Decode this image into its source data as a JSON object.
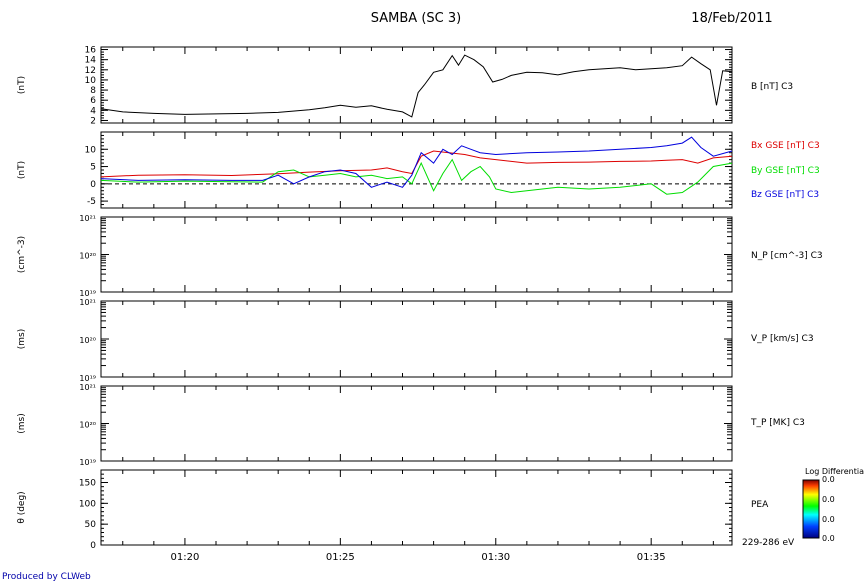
{
  "header": {
    "title": "SAMBA (SC 3)",
    "date": "18/Feb/2011"
  },
  "footer": {
    "text": "Produced by CLWeb"
  },
  "colors": {
    "frame": "#000000",
    "b_total": "#000000",
    "bx": "#dd0000",
    "by": "#00dd00",
    "bz": "#0000dd"
  },
  "chart_data": [
    {
      "type": "line",
      "panel": "B",
      "ylabel": "(nT)",
      "legend": [
        {
          "text": "B [nT] C3",
          "color": "#000000"
        }
      ],
      "xrange_min": [
        77.3,
        97.6
      ],
      "ylim": [
        1.5,
        16.5
      ],
      "yticks": [
        2,
        4,
        6,
        8,
        10,
        12,
        14,
        16
      ],
      "series": [
        {
          "color": "#000000",
          "x": [
            77.3,
            78.0,
            79.0,
            80.0,
            81.0,
            82.0,
            83.0,
            84.0,
            84.5,
            85.0,
            85.5,
            86.0,
            86.5,
            87.0,
            87.3,
            87.5,
            87.7,
            88.0,
            88.3,
            88.6,
            88.8,
            89.0,
            89.3,
            89.6,
            89.9,
            90.2,
            90.5,
            91.0,
            91.5,
            92.0,
            92.5,
            93.0,
            93.5,
            94.0,
            94.5,
            95.0,
            95.5,
            96.0,
            96.3,
            96.6,
            96.9,
            97.1,
            97.3,
            97.6
          ],
          "y": [
            4.3,
            3.7,
            3.4,
            3.2,
            3.3,
            3.4,
            3.6,
            4.1,
            4.5,
            5.0,
            4.6,
            4.9,
            4.2,
            3.7,
            2.7,
            7.5,
            9.0,
            11.5,
            12.0,
            14.8,
            12.9,
            14.9,
            14.0,
            12.6,
            9.6,
            10.1,
            10.9,
            11.5,
            11.4,
            11.0,
            11.6,
            12.0,
            12.2,
            12.4,
            12.0,
            12.2,
            12.4,
            12.8,
            14.5,
            13.2,
            12.0,
            5.0,
            11.8,
            11.6
          ]
        }
      ]
    },
    {
      "type": "line",
      "panel": "B_GSE",
      "ylabel": "(nT)",
      "legend": [
        {
          "text": "Bx GSE [nT] C3",
          "color": "#dd0000"
        },
        {
          "text": "By GSE [nT] C3",
          "color": "#00dd00"
        },
        {
          "text": "Bz GSE [nT] C3",
          "color": "#0000dd"
        }
      ],
      "xrange_min": [
        77.3,
        97.6
      ],
      "ylim": [
        -7,
        15
      ],
      "yticks": [
        -5,
        0,
        5,
        10
      ],
      "zero_line": "dashed",
      "series": [
        {
          "name": "Bx GSE [nT] C3",
          "color": "#dd0000",
          "x": [
            77.3,
            78.5,
            80.0,
            81.5,
            83.0,
            84.0,
            85.0,
            86.0,
            86.5,
            87.0,
            87.3,
            87.6,
            88.0,
            88.5,
            89.0,
            89.5,
            90.0,
            91.0,
            92.0,
            93.0,
            94.0,
            95.0,
            95.5,
            96.0,
            96.5,
            97.0,
            97.6
          ],
          "y": [
            2.0,
            2.5,
            2.6,
            2.4,
            2.9,
            3.4,
            3.8,
            4.0,
            4.6,
            3.5,
            3.0,
            8.0,
            9.5,
            9.0,
            8.5,
            7.5,
            7.0,
            6.0,
            6.2,
            6.3,
            6.5,
            6.6,
            6.8,
            7.0,
            6.0,
            7.5,
            8.0
          ]
        },
        {
          "name": "By GSE [nT] C3",
          "color": "#00dd00",
          "x": [
            77.3,
            78.5,
            80.0,
            81.5,
            82.5,
            83.0,
            83.5,
            84.0,
            84.5,
            85.0,
            85.5,
            86.0,
            86.5,
            87.0,
            87.3,
            87.6,
            88.0,
            88.3,
            88.6,
            88.9,
            89.2,
            89.5,
            89.8,
            90.0,
            90.5,
            91.0,
            92.0,
            93.0,
            94.0,
            95.0,
            95.5,
            96.0,
            96.5,
            97.0,
            97.6
          ],
          "y": [
            1.0,
            0.5,
            0.8,
            0.6,
            0.5,
            3.5,
            4.0,
            2.0,
            2.5,
            3.0,
            2.0,
            2.5,
            1.5,
            2.0,
            0.0,
            6.0,
            -2.0,
            3.0,
            7.0,
            1.0,
            3.5,
            5.0,
            2.0,
            -1.5,
            -2.5,
            -2.0,
            -1.0,
            -1.5,
            -1.0,
            0.0,
            -3.0,
            -2.5,
            0.5,
            5.0,
            6.0
          ]
        },
        {
          "name": "Bz GSE [nT] C3",
          "color": "#0000dd",
          "x": [
            77.3,
            78.5,
            80.0,
            81.5,
            82.5,
            83.0,
            83.5,
            84.0,
            84.5,
            85.0,
            85.5,
            86.0,
            86.5,
            87.0,
            87.3,
            87.6,
            88.0,
            88.3,
            88.6,
            88.9,
            89.2,
            89.5,
            90.0,
            91.0,
            92.0,
            93.0,
            94.0,
            95.0,
            95.5,
            96.0,
            96.3,
            96.6,
            97.0,
            97.6
          ],
          "y": [
            1.5,
            1.0,
            1.2,
            1.0,
            1.0,
            2.5,
            0.0,
            2.0,
            3.5,
            4.0,
            3.0,
            -1.0,
            0.5,
            -1.0,
            2.5,
            9.0,
            6.0,
            10.0,
            8.5,
            11.0,
            10.0,
            9.0,
            8.5,
            9.0,
            9.2,
            9.5,
            10.0,
            10.5,
            11.0,
            11.8,
            13.5,
            10.5,
            8.0,
            9.5
          ]
        }
      ]
    },
    {
      "type": "line",
      "panel": "N_P",
      "ylabel": "(cm^-3)",
      "legend": [
        {
          "text": "N_P [cm^-3] C3",
          "color": "#000000"
        }
      ],
      "yscale": "log",
      "ylim": [
        1e+19,
        1e+21
      ],
      "ytick_labels": [
        "10²¹",
        "10²⁰",
        "10¹⁹"
      ],
      "series": []
    },
    {
      "type": "line",
      "panel": "V_P",
      "ylabel": "(ms)",
      "legend": [
        {
          "text": "V_P [km/s] C3",
          "color": "#000000"
        }
      ],
      "yscale": "log",
      "ylim": [
        1e+19,
        1e+21
      ],
      "ytick_labels": [
        "10²¹",
        "10²⁰",
        "10¹⁹"
      ],
      "series": []
    },
    {
      "type": "line",
      "panel": "T_P",
      "ylabel": "(ms)",
      "legend": [
        {
          "text": "T_P [MK] C3",
          "color": "#000000"
        }
      ],
      "yscale": "log",
      "ylim": [
        1e+19,
        1e+21
      ],
      "ytick_labels": [
        "10²¹",
        "10²⁰",
        "10¹⁹"
      ],
      "series": []
    },
    {
      "type": "heatmap",
      "panel": "PEA",
      "ylabel": "θ (deg)",
      "legend": [
        {
          "text": "PEA",
          "color": "#000000"
        },
        {
          "text": "229-286 eV",
          "color": "#000000"
        }
      ],
      "ylim": [
        0,
        180
      ],
      "yticks": [
        0,
        50,
        100,
        150
      ],
      "colorbar": {
        "title": "Log Differential",
        "labels": [
          "0.0",
          "0.0",
          "0.0",
          "0.0"
        ]
      },
      "series": []
    }
  ],
  "x_axis": {
    "ticks_min": [
      80,
      85,
      90,
      95
    ],
    "tick_labels": [
      "01:20",
      "01:25",
      "01:30",
      "01:35"
    ]
  }
}
